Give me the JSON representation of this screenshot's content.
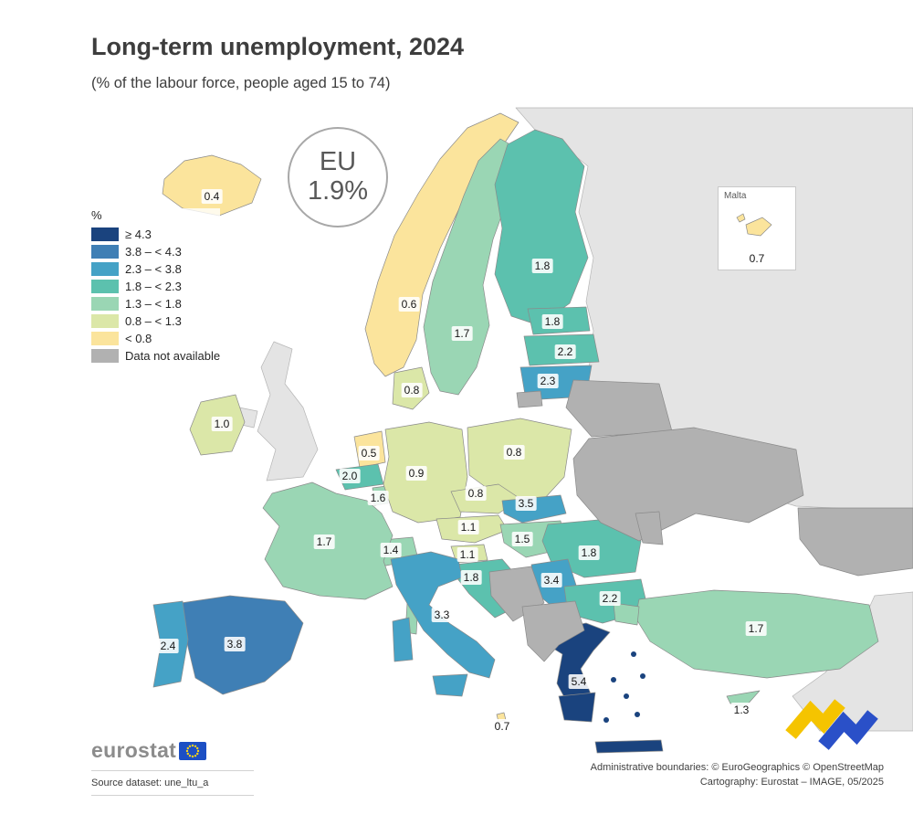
{
  "header": {
    "title": "Long-term unemployment, 2024",
    "subtitle": "(% of the labour force, people aged 15 to 74)"
  },
  "eu_badge": {
    "label": "EU",
    "value": "1.9%"
  },
  "legend": {
    "title": "%",
    "classes": [
      {
        "key": "ge43",
        "label": "≥ 4.3",
        "color": "#1a437e"
      },
      {
        "key": "c38_43",
        "label": "3.8 – < 4.3",
        "color": "#3f7fb5"
      },
      {
        "key": "c23_38",
        "label": "2.3 – < 3.8",
        "color": "#45a2c6"
      },
      {
        "key": "c18_23",
        "label": "1.8 – < 2.3",
        "color": "#5cc1ae"
      },
      {
        "key": "c13_18",
        "label": "1.3 – < 1.8",
        "color": "#9ad6b4"
      },
      {
        "key": "c08_13",
        "label": "0.8 – < 1.3",
        "color": "#dbe7a8"
      },
      {
        "key": "lt08",
        "label": "< 0.8",
        "color": "#fbe49c"
      },
      {
        "key": "nodata",
        "label": "Data not available",
        "color": "#b1b1b1"
      }
    ]
  },
  "malta_inset": {
    "title": "Malta",
    "value": "0.7"
  },
  "map": {
    "colors": {
      "sea": "#ffffff",
      "land": "#e4e4e4",
      "border": "#8a8a8a"
    },
    "countries": [
      {
        "code": "IS",
        "name": "Iceland",
        "value": "0.4",
        "cls": "lt08",
        "label": [
          232,
          215
        ]
      },
      {
        "code": "NO",
        "name": "Norway",
        "value": "0.6",
        "cls": "lt08",
        "label": [
          448,
          333
        ]
      },
      {
        "code": "SE",
        "name": "Sweden",
        "value": "1.7",
        "cls": "c13_18",
        "label": [
          506,
          365
        ]
      },
      {
        "code": "FI",
        "name": "Finland",
        "value": "1.8",
        "cls": "c18_23",
        "label": [
          594,
          291
        ]
      },
      {
        "code": "EE",
        "name": "Estonia",
        "value": "1.8",
        "cls": "c18_23",
        "label": [
          605,
          352
        ]
      },
      {
        "code": "LV",
        "name": "Latvia",
        "value": "2.2",
        "cls": "c18_23",
        "label": [
          619,
          385
        ]
      },
      {
        "code": "LT",
        "name": "Lithuania",
        "value": "2.3",
        "cls": "c23_38",
        "label": [
          600,
          417
        ]
      },
      {
        "code": "DK",
        "name": "Denmark",
        "value": "0.8",
        "cls": "c08_13",
        "label": [
          451,
          427
        ]
      },
      {
        "code": "IE",
        "name": "Ireland",
        "value": "1.0",
        "cls": "c08_13",
        "label": [
          243,
          464
        ]
      },
      {
        "code": "NL",
        "name": "Netherlands",
        "value": "0.5",
        "cls": "lt08",
        "label": [
          404,
          496
        ]
      },
      {
        "code": "BE",
        "name": "Belgium",
        "value": "2.0",
        "cls": "c18_23",
        "label": [
          383,
          521
        ]
      },
      {
        "code": "LU",
        "name": "Luxembourg",
        "value": "1.6",
        "cls": "c13_18",
        "label": [
          414,
          545
        ]
      },
      {
        "code": "DE",
        "name": "Germany",
        "value": "0.9",
        "cls": "c08_13",
        "label": [
          456,
          518
        ]
      },
      {
        "code": "PL",
        "name": "Poland",
        "value": "0.8",
        "cls": "c08_13",
        "label": [
          563,
          495
        ]
      },
      {
        "code": "CZ",
        "name": "Czechia",
        "value": "0.8",
        "cls": "c08_13",
        "label": [
          521,
          540
        ]
      },
      {
        "code": "SK",
        "name": "Slovakia",
        "value": "3.5",
        "cls": "c23_38",
        "label": [
          576,
          551
        ]
      },
      {
        "code": "AT",
        "name": "Austria",
        "value": "1.1",
        "cls": "c08_13",
        "label": [
          513,
          577
        ]
      },
      {
        "code": "HU",
        "name": "Hungary",
        "value": "1.5",
        "cls": "c13_18",
        "label": [
          572,
          590
        ]
      },
      {
        "code": "CH",
        "name": "Switzerland",
        "value": "1.4",
        "cls": "c13_18",
        "label": [
          428,
          602
        ]
      },
      {
        "code": "FR",
        "name": "France",
        "value": "1.7",
        "cls": "c13_18",
        "label": [
          355,
          593
        ]
      },
      {
        "code": "SI",
        "name": "Slovenia",
        "value": "1.1",
        "cls": "c08_13",
        "label": [
          512,
          607
        ]
      },
      {
        "code": "HR",
        "name": "Croatia",
        "value": "1.8",
        "cls": "c18_23",
        "label": [
          516,
          632
        ]
      },
      {
        "code": "RO",
        "name": "Romania",
        "value": "1.8",
        "cls": "c18_23",
        "label": [
          645,
          605
        ]
      },
      {
        "code": "RS",
        "name": "Serbia",
        "value": "3.4",
        "cls": "c23_38",
        "label": [
          604,
          635
        ]
      },
      {
        "code": "BG",
        "name": "Bulgaria",
        "value": "2.2",
        "cls": "c18_23",
        "label": [
          668,
          655
        ]
      },
      {
        "code": "GR",
        "name": "Greece",
        "value": "5.4",
        "cls": "ge43",
        "label": [
          634,
          746
        ]
      },
      {
        "code": "IT",
        "name": "Italy",
        "value": "3.3",
        "cls": "c23_38",
        "label": [
          484,
          673
        ]
      },
      {
        "code": "ES",
        "name": "Spain",
        "value": "3.8",
        "cls": "c38_43",
        "label": [
          257,
          705
        ]
      },
      {
        "code": "PT",
        "name": "Portugal",
        "value": "2.4",
        "cls": "c23_38",
        "label": [
          184,
          707
        ]
      },
      {
        "code": "TR",
        "name": "Turkey",
        "value": "1.7",
        "cls": "c13_18",
        "label": [
          828,
          688
        ]
      },
      {
        "code": "CY",
        "name": "Cyprus",
        "value": "1.3",
        "cls": "c13_18",
        "label": [
          812,
          777
        ]
      },
      {
        "code": "MT",
        "name": "Malta",
        "value": "0.7",
        "cls": "lt08",
        "label": [
          550,
          795
        ]
      }
    ]
  },
  "brand": {
    "flag_blue": "#1c4fc4",
    "star_yellow": "#ffd617",
    "deco_yellow": "#f5c400",
    "deco_blue": "#2a50c8"
  },
  "footer": {
    "logo_text": "eurostat",
    "source": "Source dataset: une_ltu_a",
    "credit_line1": "Administrative boundaries: © EuroGeographics © OpenStreetMap",
    "credit_line2": "Cartography: Eurostat – IMAGE, 05/2025"
  }
}
